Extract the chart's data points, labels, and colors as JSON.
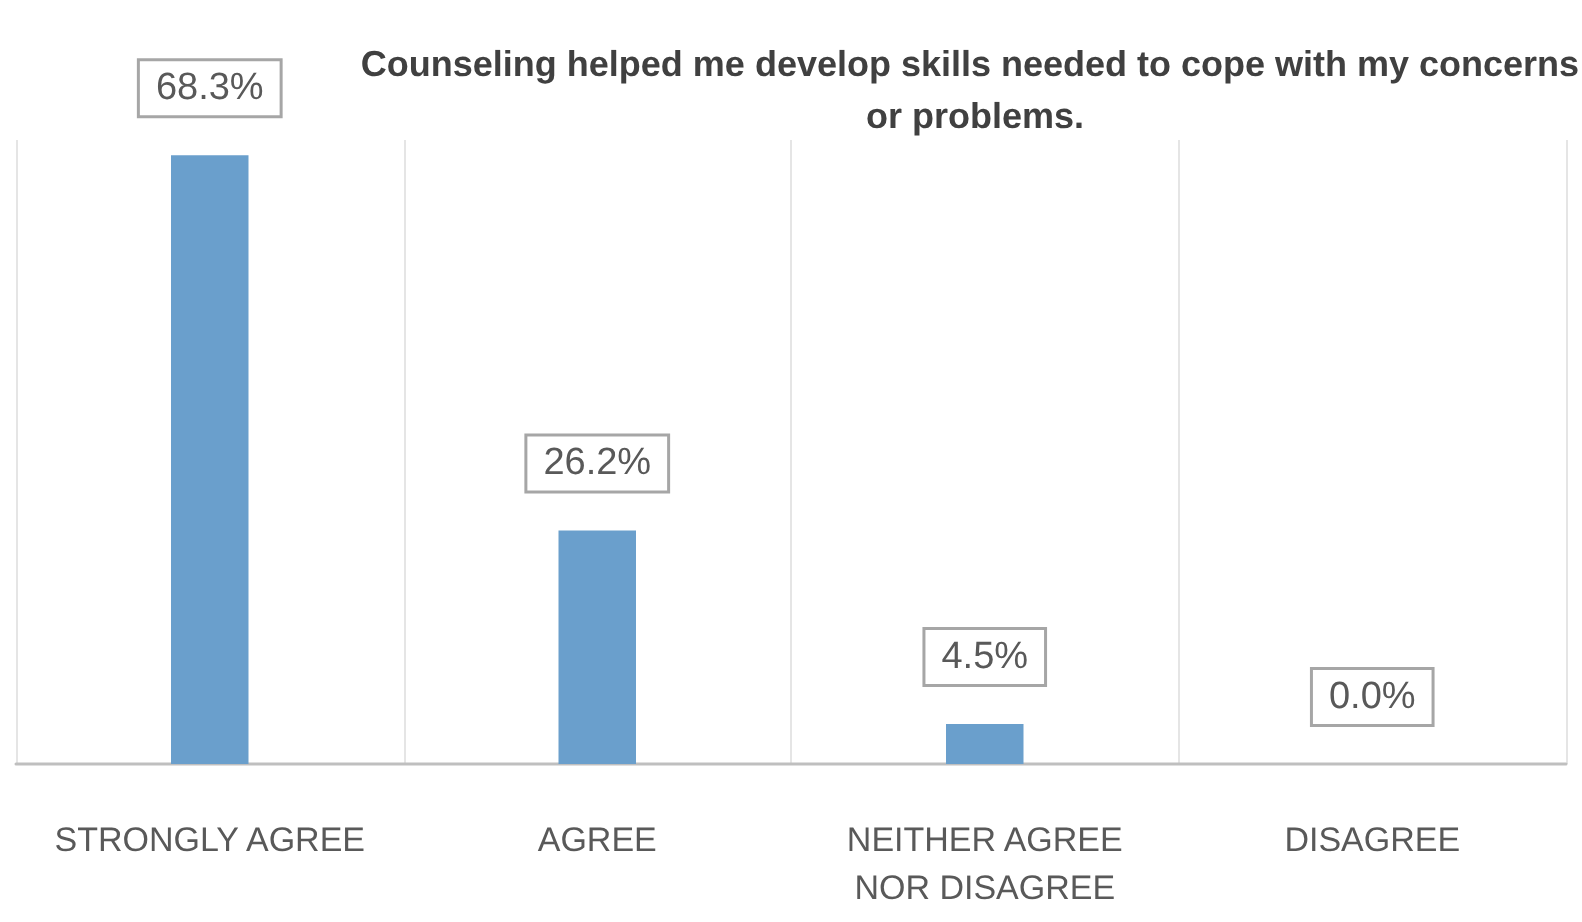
{
  "chart_data": {
    "type": "bar",
    "title": "Counseling helped me develop skills needed to cope with my concerns or problems.",
    "categories": [
      "STRONGLY AGREE",
      "AGREE",
      "NEITHER AGREE\nNOR DISAGREE",
      "DISAGREE"
    ],
    "values": [
      68.3,
      26.2,
      4.5,
      0.0
    ],
    "value_labels": [
      "68.3%",
      "26.2%",
      "4.5%",
      "0.0%"
    ],
    "color": "#6a9fcc",
    "grid": "x"
  }
}
